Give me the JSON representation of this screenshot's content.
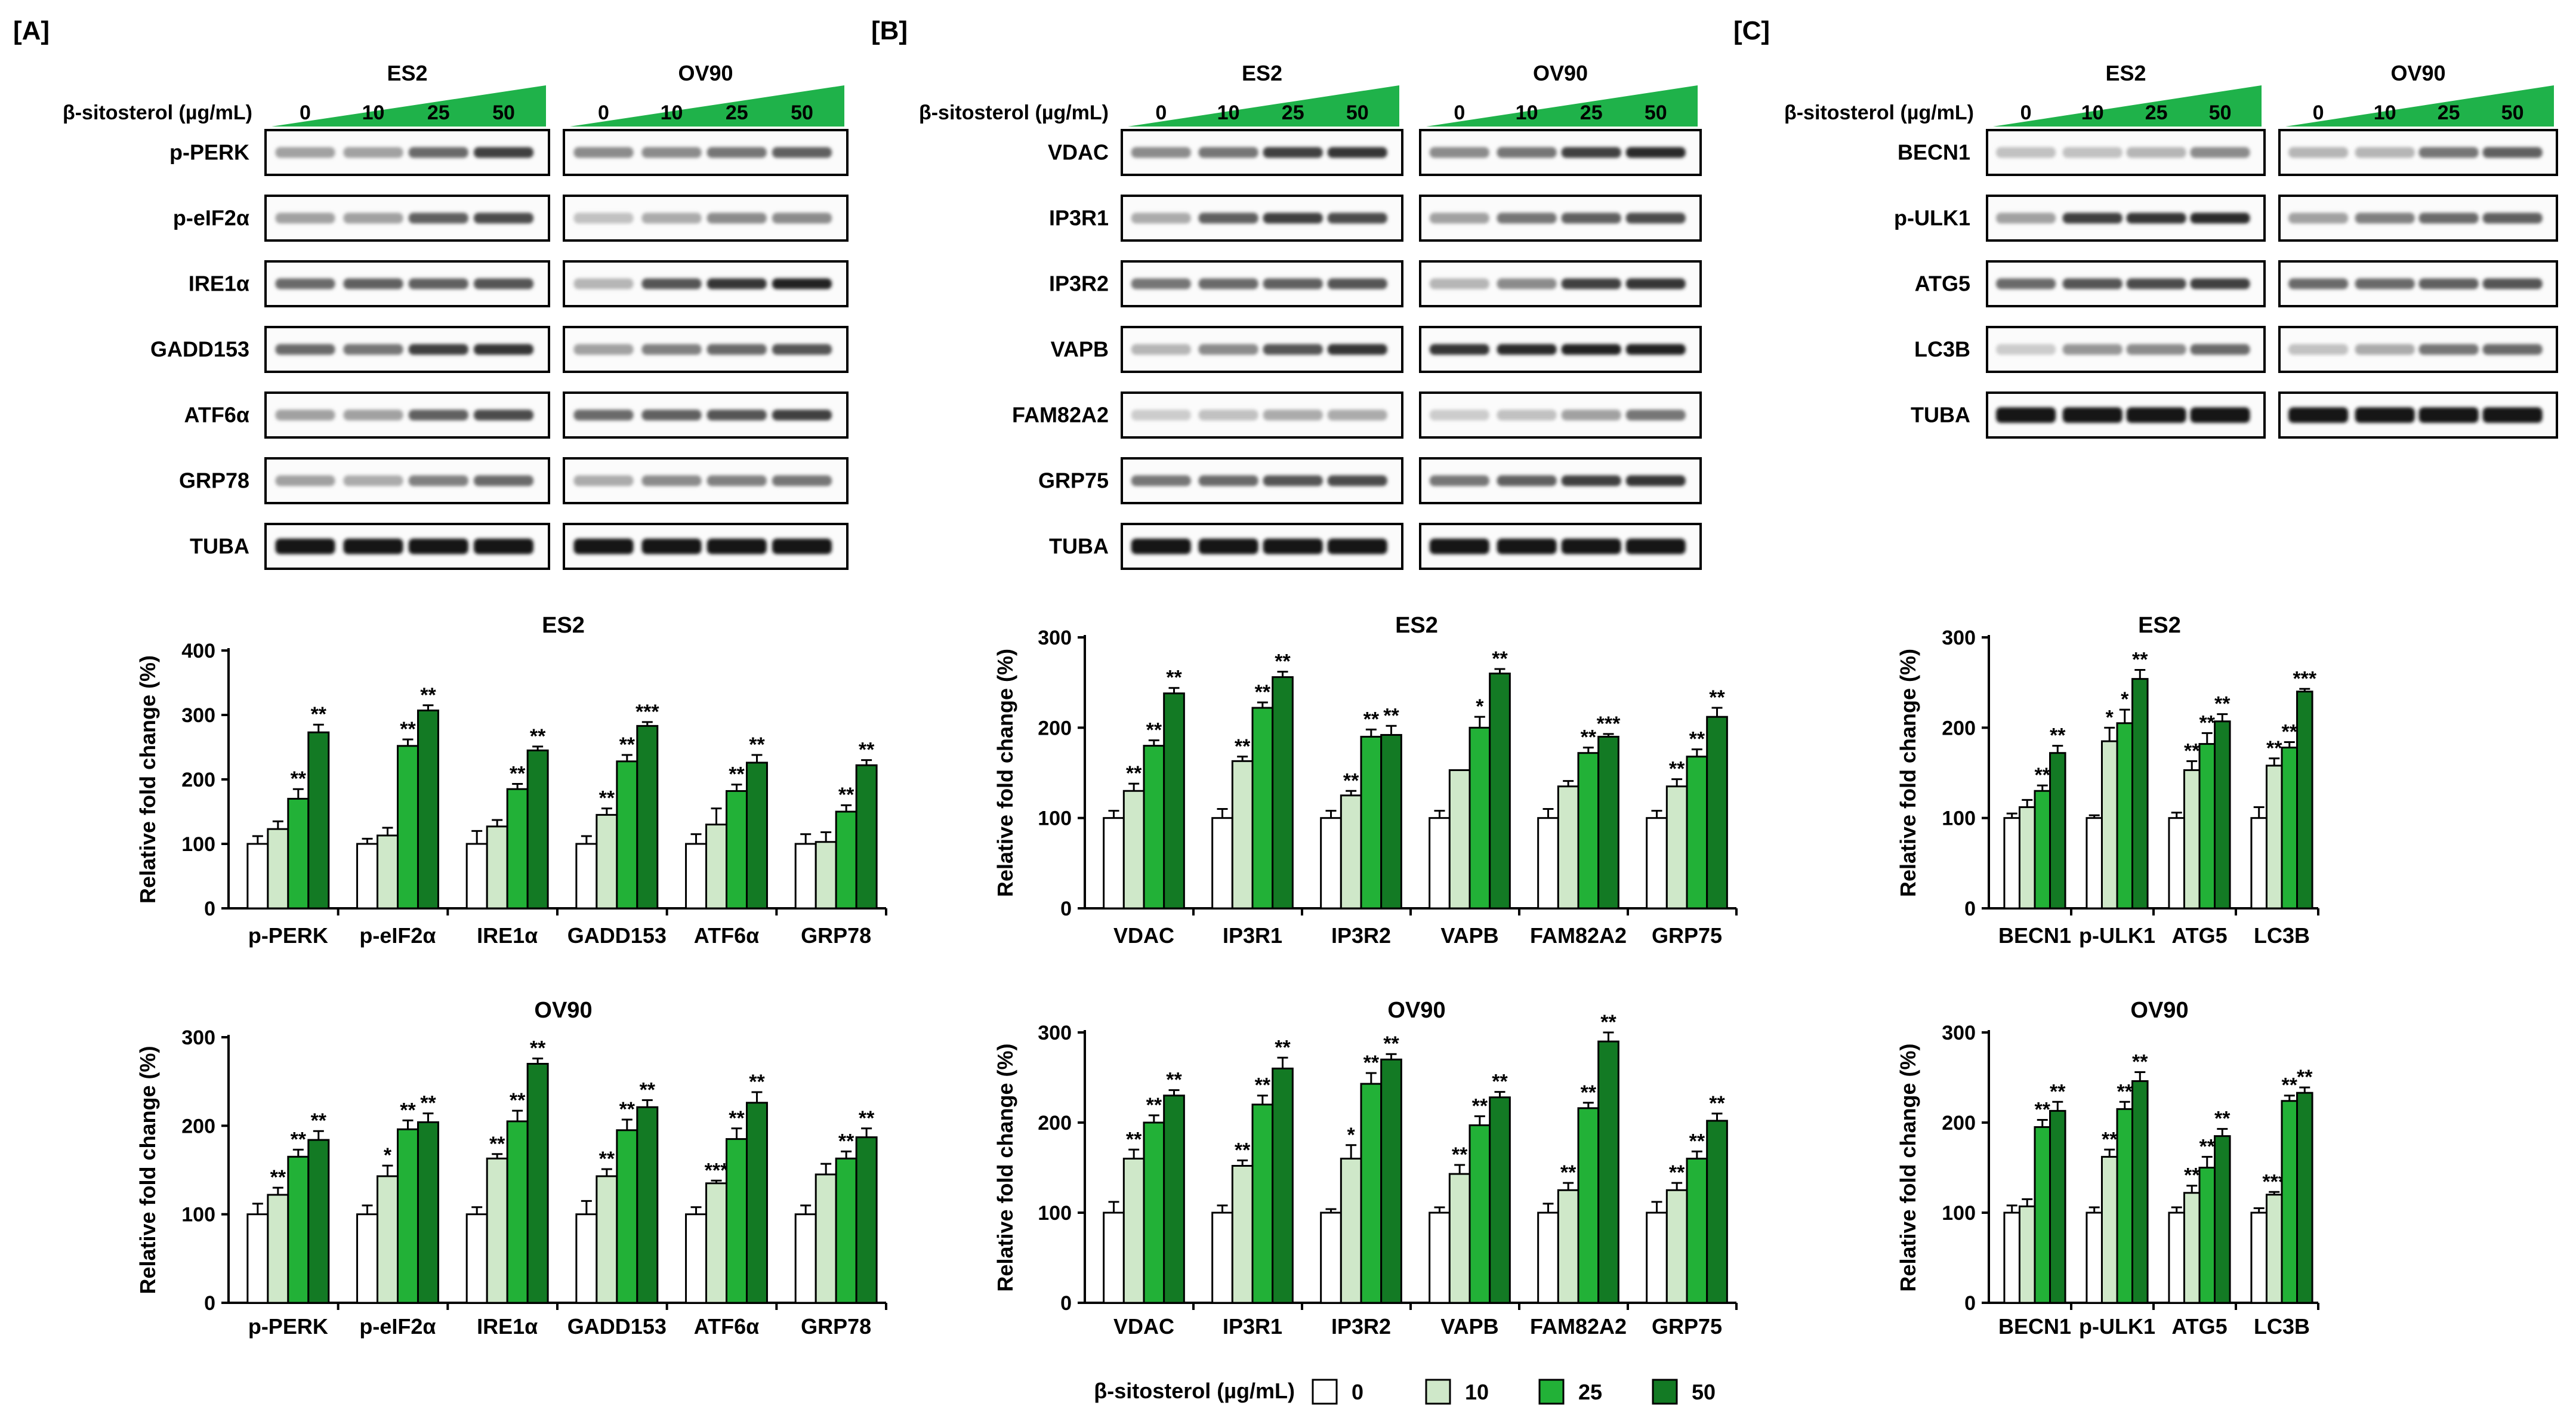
{
  "figure": {
    "palette": {
      "c0": "#ffffff",
      "c10": "#cfe8c9",
      "c25": "#22b137",
      "c50": "#137a24"
    },
    "axis_label": "Relative fold change (%)",
    "treatment_label": "β-sitosterol (µg/mL)",
    "doses": [
      "0",
      "10",
      "25",
      "50"
    ],
    "legend": {
      "label": "β-sitosterol (µg/mL)",
      "items": [
        "0",
        "10",
        "25",
        "50"
      ]
    },
    "panels": [
      {
        "label": "[A]",
        "cells": [
          "ES2",
          "OV90"
        ],
        "blots": [
          "p-PERK",
          "p-eIF2α",
          "IRE1α",
          "GADD153",
          "ATF6α",
          "GRP78",
          "TUBA"
        ],
        "bands": [
          [
            [
              0.3,
              0.3,
              0.55,
              0.75
            ],
            [
              0.4,
              0.4,
              0.5,
              0.6
            ]
          ],
          [
            [
              0.3,
              0.3,
              0.6,
              0.7
            ],
            [
              0.15,
              0.25,
              0.4,
              0.4
            ]
          ],
          [
            [
              0.55,
              0.6,
              0.6,
              0.65
            ],
            [
              0.2,
              0.65,
              0.8,
              0.9
            ]
          ],
          [
            [
              0.55,
              0.5,
              0.75,
              0.8
            ],
            [
              0.3,
              0.45,
              0.55,
              0.65
            ]
          ],
          [
            [
              0.3,
              0.3,
              0.6,
              0.7
            ],
            [
              0.55,
              0.6,
              0.65,
              0.75
            ]
          ],
          [
            [
              0.3,
              0.25,
              0.45,
              0.55
            ],
            [
              0.25,
              0.4,
              0.45,
              0.5
            ]
          ],
          [
            [
              0.95,
              0.95,
              0.95,
              0.95
            ],
            [
              0.95,
              0.95,
              0.95,
              0.95
            ]
          ]
        ]
      },
      {
        "label": "[B]",
        "cells": [
          "ES2",
          "OV90"
        ],
        "blots": [
          "VDAC",
          "IP3R1",
          "IP3R2",
          "VAPB",
          "FAM82A2",
          "GRP75",
          "TUBA"
        ],
        "bands": [
          [
            [
              0.4,
              0.5,
              0.75,
              0.8
            ],
            [
              0.4,
              0.5,
              0.75,
              0.85
            ]
          ],
          [
            [
              0.25,
              0.6,
              0.75,
              0.7
            ],
            [
              0.3,
              0.5,
              0.6,
              0.7
            ]
          ],
          [
            [
              0.5,
              0.55,
              0.6,
              0.65
            ],
            [
              0.2,
              0.4,
              0.75,
              0.8
            ]
          ],
          [
            [
              0.2,
              0.4,
              0.65,
              0.8
            ],
            [
              0.8,
              0.85,
              0.9,
              0.9
            ]
          ],
          [
            [
              0.1,
              0.15,
              0.25,
              0.25
            ],
            [
              0.1,
              0.15,
              0.3,
              0.5
            ]
          ],
          [
            [
              0.5,
              0.55,
              0.65,
              0.7
            ],
            [
              0.5,
              0.6,
              0.75,
              0.8
            ]
          ],
          [
            [
              0.95,
              0.95,
              0.95,
              0.95
            ],
            [
              0.95,
              0.95,
              0.95,
              0.95
            ]
          ]
        ]
      },
      {
        "label": "[C]",
        "cells": [
          "ES2",
          "OV90"
        ],
        "blots": [
          "BECN1",
          "p-ULK1",
          "ATG5",
          "LC3B",
          "TUBA"
        ],
        "bands": [
          [
            [
              0.15,
              0.15,
              0.2,
              0.4
            ],
            [
              0.2,
              0.2,
              0.5,
              0.6
            ]
          ],
          [
            [
              0.3,
              0.75,
              0.8,
              0.85
            ],
            [
              0.3,
              0.45,
              0.55,
              0.6
            ]
          ],
          [
            [
              0.55,
              0.65,
              0.7,
              0.75
            ],
            [
              0.55,
              0.55,
              0.6,
              0.65
            ]
          ],
          [
            [
              0.1,
              0.35,
              0.4,
              0.55
            ],
            [
              0.15,
              0.25,
              0.5,
              0.55
            ]
          ],
          [
            [
              0.95,
              0.95,
              0.95,
              0.95
            ],
            [
              0.95,
              0.95,
              0.95,
              0.95
            ]
          ]
        ]
      }
    ]
  },
  "chart_data": [
    {
      "type": "bar",
      "panel": "[A]",
      "title": "ES2",
      "ylabel": "Relative fold change (%)",
      "ylim": [
        0,
        400
      ],
      "yticks": [
        "0",
        "100",
        "200",
        "300",
        "400"
      ],
      "categories": [
        "p-PERK",
        "p-eIF2α",
        "IRE1α",
        "GADD153",
        "ATF6α",
        "GRP78"
      ],
      "series": [
        {
          "name": "0",
          "values": [
            100,
            100,
            100,
            100,
            100,
            100
          ],
          "err": [
            12,
            8,
            20,
            12,
            15,
            15
          ],
          "sig": [
            "",
            "",
            "",
            "",
            "",
            ""
          ]
        },
        {
          "name": "10",
          "values": [
            123,
            113,
            127,
            145,
            130,
            103
          ],
          "err": [
            12,
            12,
            10,
            10,
            25,
            15
          ],
          "sig": [
            "",
            "",
            "",
            "**",
            "",
            ""
          ]
        },
        {
          "name": "25",
          "values": [
            170,
            252,
            185,
            228,
            182,
            150
          ],
          "err": [
            15,
            10,
            8,
            10,
            10,
            10
          ],
          "sig": [
            "**",
            "**",
            "**",
            "**",
            "**",
            "**"
          ]
        },
        {
          "name": "50",
          "values": [
            273,
            307,
            245,
            283,
            226,
            222
          ],
          "err": [
            12,
            8,
            6,
            6,
            12,
            8
          ],
          "sig": [
            "**",
            "**",
            "**",
            "***",
            "**",
            "**"
          ]
        }
      ]
    },
    {
      "type": "bar",
      "panel": "[A]",
      "title": "OV90",
      "ylabel": "Relative fold change (%)",
      "ylim": [
        0,
        300
      ],
      "yticks": [
        "0",
        "100",
        "200",
        "300"
      ],
      "categories": [
        "p-PERK",
        "p-eIF2α",
        "IRE1α",
        "GADD153",
        "ATF6α",
        "GRP78"
      ],
      "series": [
        {
          "name": "0",
          "values": [
            100,
            100,
            100,
            100,
            100,
            100
          ],
          "err": [
            12,
            10,
            8,
            15,
            8,
            10
          ],
          "sig": [
            "",
            "",
            "",
            "",
            "",
            ""
          ]
        },
        {
          "name": "10",
          "values": [
            122,
            143,
            163,
            143,
            135,
            145
          ],
          "err": [
            8,
            12,
            5,
            8,
            3,
            12
          ],
          "sig": [
            "**",
            "*",
            "**",
            "**",
            "***",
            ""
          ]
        },
        {
          "name": "25",
          "values": [
            165,
            196,
            205,
            195,
            185,
            163
          ],
          "err": [
            8,
            10,
            12,
            12,
            12,
            8
          ],
          "sig": [
            "**",
            "**",
            "**",
            "**",
            "**",
            "**"
          ]
        },
        {
          "name": "50",
          "values": [
            184,
            204,
            270,
            221,
            226,
            187
          ],
          "err": [
            10,
            10,
            6,
            8,
            12,
            10
          ],
          "sig": [
            "**",
            "**",
            "**",
            "**",
            "**",
            "**"
          ]
        }
      ]
    },
    {
      "type": "bar",
      "panel": "[B]",
      "title": "ES2",
      "ylabel": "Relative fold change (%)",
      "ylim": [
        0,
        300
      ],
      "yticks": [
        "0",
        "100",
        "200",
        "300"
      ],
      "categories": [
        "VDAC",
        "IP3R1",
        "IP3R2",
        "VAPB",
        "FAM82A2",
        "GRP75"
      ],
      "series": [
        {
          "name": "0",
          "values": [
            100,
            100,
            100,
            100,
            100,
            100
          ],
          "err": [
            8,
            10,
            8,
            8,
            10,
            8
          ],
          "sig": [
            "",
            "",
            "",
            "",
            "",
            ""
          ]
        },
        {
          "name": "10",
          "values": [
            130,
            163,
            125,
            153,
            135,
            135
          ],
          "err": [
            8,
            5,
            5,
            0,
            6,
            8
          ],
          "sig": [
            "**",
            "**",
            "**",
            "",
            "",
            "**"
          ]
        },
        {
          "name": "25",
          "values": [
            180,
            222,
            190,
            200,
            172,
            168
          ],
          "err": [
            6,
            6,
            8,
            12,
            6,
            8
          ],
          "sig": [
            "**",
            "**",
            "**",
            "*",
            "**",
            "**"
          ]
        },
        {
          "name": "50",
          "values": [
            238,
            256,
            192,
            260,
            190,
            212
          ],
          "err": [
            6,
            6,
            10,
            5,
            3,
            10
          ],
          "sig": [
            "**",
            "**",
            "**",
            "**",
            "***",
            "**"
          ]
        }
      ]
    },
    {
      "type": "bar",
      "panel": "[B]",
      "title": "OV90",
      "ylabel": "Relative fold change (%)",
      "ylim": [
        0,
        300
      ],
      "yticks": [
        "0",
        "100",
        "200",
        "300"
      ],
      "categories": [
        "VDAC",
        "IP3R1",
        "IP3R2",
        "VAPB",
        "FAM82A2",
        "GRP75"
      ],
      "series": [
        {
          "name": "0",
          "values": [
            100,
            100,
            100,
            100,
            100,
            100
          ],
          "err": [
            12,
            8,
            4,
            6,
            10,
            12
          ],
          "sig": [
            "",
            "",
            "",
            "",
            "",
            ""
          ]
        },
        {
          "name": "10",
          "values": [
            160,
            152,
            160,
            143,
            125,
            125
          ],
          "err": [
            10,
            6,
            15,
            10,
            8,
            8
          ],
          "sig": [
            "**",
            "**",
            "*",
            "**",
            "**",
            "**"
          ]
        },
        {
          "name": "25",
          "values": [
            200,
            220,
            243,
            197,
            216,
            160
          ],
          "err": [
            8,
            10,
            12,
            10,
            6,
            8
          ],
          "sig": [
            "**",
            "**",
            "**",
            "**",
            "**",
            "**"
          ]
        },
        {
          "name": "50",
          "values": [
            230,
            260,
            270,
            228,
            290,
            202
          ],
          "err": [
            6,
            12,
            6,
            6,
            10,
            8
          ],
          "sig": [
            "**",
            "**",
            "**",
            "**",
            "**",
            "**"
          ]
        }
      ]
    },
    {
      "type": "bar",
      "panel": "[C]",
      "title": "ES2",
      "ylabel": "Relative fold change (%)",
      "ylim": [
        0,
        300
      ],
      "yticks": [
        "0",
        "100",
        "200",
        "300"
      ],
      "categories": [
        "BECN1",
        "p-ULK1",
        "ATG5",
        "LC3B"
      ],
      "series": [
        {
          "name": "0",
          "values": [
            100,
            100,
            100,
            100
          ],
          "err": [
            5,
            3,
            6,
            12
          ],
          "sig": [
            "",
            "",
            "",
            ""
          ]
        },
        {
          "name": "10",
          "values": [
            112,
            185,
            153,
            158
          ],
          "err": [
            8,
            15,
            10,
            8
          ],
          "sig": [
            "",
            "*",
            "**",
            "**"
          ]
        },
        {
          "name": "25",
          "values": [
            130,
            205,
            182,
            178
          ],
          "err": [
            6,
            15,
            12,
            6
          ],
          "sig": [
            "**",
            "*",
            "**",
            "**"
          ]
        },
        {
          "name": "50",
          "values": [
            172,
            254,
            207,
            240
          ],
          "err": [
            8,
            10,
            8,
            3
          ],
          "sig": [
            "**",
            "**",
            "**",
            "***"
          ]
        }
      ]
    },
    {
      "type": "bar",
      "panel": "[C]",
      "title": "OV90",
      "ylabel": "Relative fold change (%)",
      "ylim": [
        0,
        300
      ],
      "yticks": [
        "0",
        "100",
        "200",
        "300"
      ],
      "categories": [
        "BECN1",
        "p-ULK1",
        "ATG5",
        "LC3B"
      ],
      "series": [
        {
          "name": "0",
          "values": [
            100,
            100,
            100,
            100
          ],
          "err": [
            8,
            6,
            6,
            5
          ],
          "sig": [
            "",
            "",
            "",
            ""
          ]
        },
        {
          "name": "10",
          "values": [
            107,
            162,
            122,
            120
          ],
          "err": [
            8,
            8,
            8,
            3
          ],
          "sig": [
            "",
            "**",
            "**",
            "***"
          ]
        },
        {
          "name": "25",
          "values": [
            195,
            215,
            150,
            224
          ],
          "err": [
            8,
            8,
            12,
            6
          ],
          "sig": [
            "**",
            "**",
            "**",
            "**"
          ]
        },
        {
          "name": "50",
          "values": [
            213,
            246,
            185,
            233
          ],
          "err": [
            10,
            10,
            8,
            6
          ],
          "sig": [
            "**",
            "**",
            "**",
            "**"
          ]
        }
      ]
    }
  ]
}
